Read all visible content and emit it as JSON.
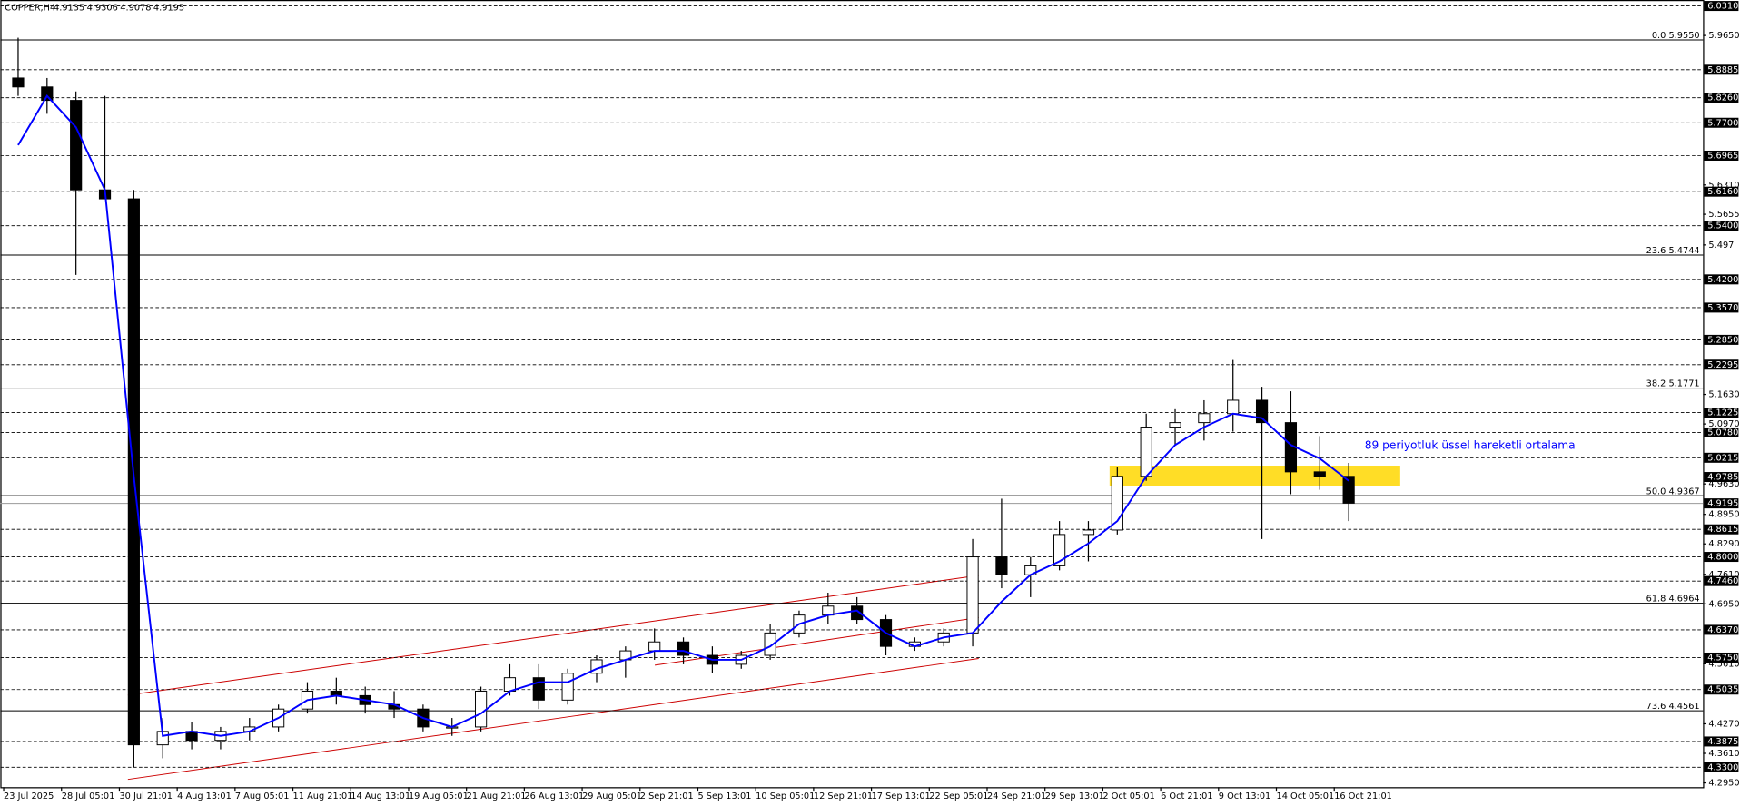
{
  "chart_data": {
    "type": "candlestick",
    "title": "COPPER,H4",
    "ohlc_header": [
      4.9135,
      4.9306,
      4.9078,
      4.9195
    ],
    "annotation": "89 periyotluk üssel hareketli ortalama",
    "xlim": [
      0,
      470
    ],
    "ylim": [
      4.2855,
      6.0443
    ],
    "xticks": [
      {
        "value": 0,
        "label": "23 Jul 2025"
      },
      {
        "value": 16,
        "label": "28 Jul 05:01"
      },
      {
        "value": 32,
        "label": "30 Jul 21:01"
      },
      {
        "value": 48,
        "label": "4 Aug 13:01"
      },
      {
        "value": 64,
        "label": "7 Aug 05:01"
      },
      {
        "value": 80,
        "label": "11 Aug 21:01"
      },
      {
        "value": 96,
        "label": "14 Aug 13:01"
      },
      {
        "value": 112,
        "label": "19 Aug 05:01"
      },
      {
        "value": 128,
        "label": "21 Aug 21:01"
      },
      {
        "value": 144,
        "label": "26 Aug 13:01"
      },
      {
        "value": 160,
        "label": "29 Aug 05:01"
      },
      {
        "value": 176,
        "label": "2 Sep 21:01"
      },
      {
        "value": 192,
        "label": "5 Sep 13:01"
      },
      {
        "value": 208,
        "label": "10 Sep 05:01"
      },
      {
        "value": 224,
        "label": "12 Sep 21:01"
      },
      {
        "value": 240,
        "label": "17 Sep 13:01"
      },
      {
        "value": 256,
        "label": "22 Sep 05:01"
      },
      {
        "value": 272,
        "label": "24 Sep 21:01"
      },
      {
        "value": 288,
        "label": "29 Sep 13:01"
      },
      {
        "value": 304,
        "label": "2 Oct 05:01"
      },
      {
        "value": 320,
        "label": "6 Oct 21:01"
      },
      {
        "value": 336,
        "label": "9 Oct 13:01"
      },
      {
        "value": 352,
        "label": "14 Oct 05:01"
      },
      {
        "value": 368,
        "label": "16 Oct 21:01"
      }
    ],
    "yticks": [
      {
        "value": 5.965,
        "label": "5.9650"
      },
      {
        "value": 5.631,
        "label": "5.6310"
      },
      5.5655,
      5.497,
      {
        "value": 5.163,
        "label": "5.1630"
      },
      {
        "value": 5.097,
        "label": "5.0970"
      },
      {
        "value": 4.963,
        "label": "4.9630"
      },
      {
        "value": 4.895,
        "label": "4.8950"
      },
      {
        "value": 4.829,
        "label": "4.8290"
      },
      {
        "value": 4.761,
        "label": "4.7610"
      },
      {
        "value": 4.695,
        "label": "4.6950"
      },
      {
        "value": 4.561,
        "label": "4.5610"
      },
      {
        "value": 4.427,
        "label": "4.4270"
      },
      {
        "value": 4.361,
        "label": "4.3610"
      },
      {
        "value": 4.295,
        "label": "4.2950"
      }
    ],
    "price_levels": [
      {
        "value": 6.031,
        "label": "6.0310"
      },
      {
        "value": 5.8885,
        "label": "5.8885"
      },
      {
        "value": 5.826,
        "label": "5.8260"
      },
      {
        "value": 5.77,
        "label": "5.7700"
      },
      {
        "value": 5.6965,
        "label": "5.6965"
      },
      {
        "value": 5.616,
        "label": "5.6160"
      },
      {
        "value": 5.54,
        "label": "5.5400"
      },
      {
        "value": 5.42,
        "label": "5.4200"
      },
      {
        "value": 5.357,
        "label": "5.3570"
      },
      {
        "value": 5.285,
        "label": "5.2850"
      },
      {
        "value": 5.2295,
        "label": "5.2295"
      },
      {
        "value": 5.1225,
        "label": "5.1225"
      },
      {
        "value": 5.078,
        "label": "5.0780"
      },
      {
        "value": 5.0215,
        "label": "5.0215"
      },
      {
        "value": 4.9785,
        "label": "4.9785"
      },
      {
        "value": 4.8615,
        "label": "4.8615"
      },
      {
        "value": 4.8,
        "label": "4.8000"
      },
      {
        "value": 4.746,
        "label": "4.7460"
      },
      {
        "value": 4.637,
        "label": "4.6370"
      },
      {
        "value": 4.575,
        "label": "4.5750"
      },
      {
        "value": 4.5035,
        "label": "4.5035"
      },
      {
        "value": 4.3875,
        "label": "4.3875"
      },
      {
        "value": 4.33,
        "label": "4.3300"
      }
    ],
    "current_price": {
      "value": 4.9195,
      "label": "4.9195"
    },
    "fib_levels": [
      {
        "value": 5.955,
        "label": "0.0 5.9550"
      },
      {
        "value": 5.4744,
        "label": "23.6 5.4744"
      },
      {
        "value": 5.1771,
        "label": "38.2 5.1771"
      },
      {
        "value": 4.9367,
        "label": "50.0 4.9367"
      },
      {
        "value": 4.6964,
        "label": "61.8 4.6964"
      },
      {
        "value": 4.4561,
        "label": "73.6 4.4561"
      }
    ],
    "ema_color": "#0000ff",
    "x": [
      4,
      12,
      20,
      28,
      36,
      44,
      52,
      60,
      68,
      76,
      84,
      92,
      100,
      108,
      116,
      124,
      132,
      140,
      148,
      156,
      164,
      172,
      180,
      188,
      196,
      204,
      212,
      220,
      228,
      236,
      244,
      252,
      260,
      268,
      276,
      284,
      292,
      300,
      308,
      316,
      324,
      332,
      340,
      348,
      356,
      364,
      372
    ],
    "open": [
      5.87,
      5.85,
      5.82,
      5.62,
      5.6,
      4.38,
      4.41,
      4.39,
      4.41,
      4.42,
      4.46,
      4.5,
      4.49,
      4.47,
      4.46,
      4.42,
      4.42,
      4.5,
      4.53,
      4.48,
      4.54,
      4.57,
      4.59,
      4.61,
      4.58,
      4.56,
      4.58,
      4.63,
      4.67,
      4.69,
      4.66,
      4.6,
      4.61,
      4.63,
      4.8,
      4.76,
      4.78,
      4.85,
      4.86,
      4.98,
      5.09,
      5.1,
      5.12,
      5.15,
      5.1,
      4.99,
      4.98
    ],
    "high": [
      5.96,
      5.87,
      5.84,
      5.83,
      5.62,
      4.44,
      4.43,
      4.42,
      4.44,
      4.47,
      4.52,
      4.53,
      4.51,
      4.5,
      4.47,
      4.44,
      4.51,
      4.56,
      4.56,
      4.55,
      4.58,
      4.6,
      4.64,
      4.62,
      4.6,
      4.59,
      4.65,
      4.68,
      4.72,
      4.71,
      4.67,
      4.62,
      4.64,
      4.84,
      4.93,
      4.8,
      4.88,
      4.88,
      5.0,
      5.12,
      5.13,
      5.15,
      5.24,
      5.18,
      5.17,
      5.07,
      5.01
    ],
    "low": [
      5.83,
      5.79,
      5.43,
      5.6,
      4.33,
      4.35,
      4.37,
      4.37,
      4.39,
      4.41,
      4.45,
      4.47,
      4.45,
      4.44,
      4.41,
      4.4,
      4.41,
      4.49,
      4.46,
      4.47,
      4.52,
      4.53,
      4.57,
      4.56,
      4.54,
      4.55,
      4.57,
      4.62,
      4.65,
      4.65,
      4.58,
      4.59,
      4.6,
      4.6,
      4.73,
      4.71,
      4.77,
      4.79,
      4.85,
      4.97,
      5.05,
      5.06,
      5.08,
      4.84,
      4.94,
      4.95,
      4.88
    ],
    "close": [
      5.85,
      5.82,
      5.62,
      5.6,
      4.38,
      4.41,
      4.39,
      4.41,
      4.42,
      4.46,
      4.5,
      4.49,
      4.47,
      4.46,
      4.42,
      4.42,
      4.5,
      4.53,
      4.48,
      4.54,
      4.57,
      4.59,
      4.61,
      4.58,
      4.56,
      4.58,
      4.63,
      4.67,
      4.69,
      4.66,
      4.6,
      4.61,
      4.63,
      4.8,
      4.76,
      4.78,
      4.85,
      4.86,
      4.98,
      5.09,
      5.1,
      5.12,
      5.15,
      5.1,
      4.99,
      4.98,
      4.92
    ],
    "ema": [
      5.72,
      5.83,
      5.76,
      5.62,
      4.98,
      4.4,
      4.41,
      4.4,
      4.41,
      4.44,
      4.48,
      4.49,
      4.48,
      4.47,
      4.44,
      4.42,
      4.45,
      4.5,
      4.52,
      4.52,
      4.55,
      4.57,
      4.59,
      4.59,
      4.57,
      4.57,
      4.6,
      4.65,
      4.67,
      4.68,
      4.63,
      4.6,
      4.62,
      4.63,
      4.7,
      4.76,
      4.79,
      4.83,
      4.88,
      4.98,
      5.05,
      5.09,
      5.12,
      5.11,
      5.05,
      5.02,
      4.97
    ]
  }
}
